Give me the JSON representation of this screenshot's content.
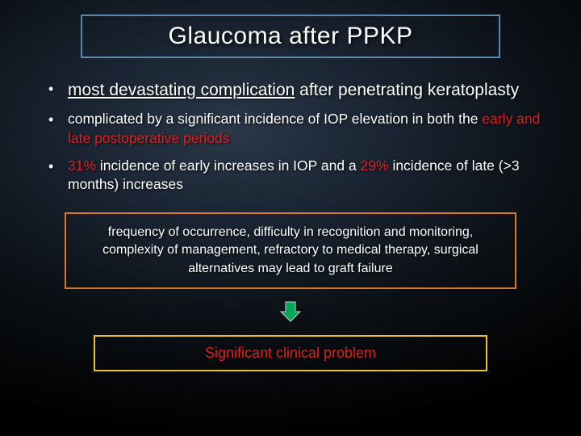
{
  "title": {
    "text": "Glaucoma after PPKP",
    "border_color": "#5a8ab0",
    "text_color": "#ffffff",
    "fontsize": 30
  },
  "bullets": [
    {
      "size": "large",
      "segments": [
        {
          "text": "most devastating complication",
          "underline": true,
          "color": "#ffffff"
        },
        {
          "text": " after penetrating keratoplasty",
          "underline": false,
          "color": "#ffffff"
        }
      ]
    },
    {
      "size": "small",
      "segments": [
        {
          "text": "complicated by a significant incidence of IOP elevation in both the ",
          "color": "#ffffff"
        },
        {
          "text": "early and late postoperative periods",
          "color": "#e02020"
        }
      ]
    },
    {
      "size": "small",
      "segments": [
        {
          "text": "31%",
          "color": "#e02020"
        },
        {
          "text": " incidence of early increases in IOP and a ",
          "color": "#ffffff"
        },
        {
          "text": "29%",
          "color": "#e02020"
        },
        {
          "text": " incidence of late (>3 months) increases",
          "color": "#ffffff"
        }
      ]
    }
  ],
  "orange_box": {
    "text": "frequency of occurrence, difficulty in recognition and monitoring, complexity of management, refractory to medical therapy, surgical alternatives may lead to graft failure",
    "border_color": "#d97828",
    "text_color": "#ffffff",
    "fontsize": 16
  },
  "arrow": {
    "fill_color": "#00a858",
    "stroke_color": "#d0d0d0",
    "width": 28,
    "height": 28
  },
  "yellow_box": {
    "text": "Significant clinical problem",
    "border_color": "#e8c030",
    "text_color": "#e02020",
    "fontsize": 18
  },
  "background": {
    "type": "radial-gradient",
    "inner_color": "#2a3848",
    "outer_color": "#000000"
  }
}
